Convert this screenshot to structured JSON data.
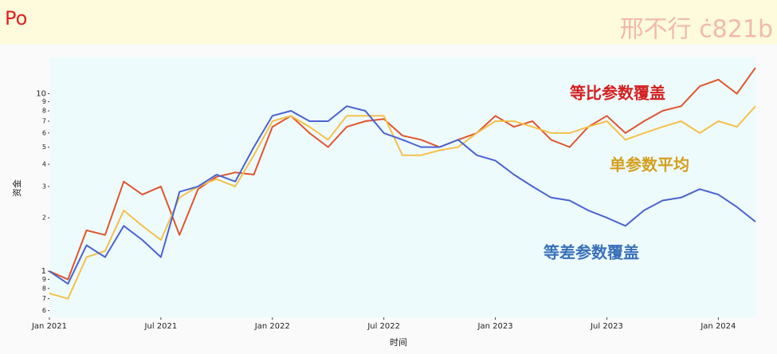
{
  "overlay": {
    "corner_label": "Po",
    "watermark": "邢不行 ċ821b"
  },
  "chart_data": {
    "type": "line",
    "ylabel": "资金",
    "xlabel": "时间",
    "log_y": true,
    "grid": false,
    "x": [
      "2021-01",
      "2021-02",
      "2021-03",
      "2021-04",
      "2021-05",
      "2021-06",
      "2021-07",
      "2021-08",
      "2021-09",
      "2021-10",
      "2021-11",
      "2021-12",
      "2022-01",
      "2022-02",
      "2022-03",
      "2022-04",
      "2022-05",
      "2022-06",
      "2022-07",
      "2022-08",
      "2022-09",
      "2022-10",
      "2022-11",
      "2022-12",
      "2023-01",
      "2023-02",
      "2023-03",
      "2023-04",
      "2023-05",
      "2023-06",
      "2023-07",
      "2023-08",
      "2023-09",
      "2023-10",
      "2023-11",
      "2023-12",
      "2024-01",
      "2024-02",
      "2024-03"
    ],
    "xlim": [
      "2021-01",
      "2024-03"
    ],
    "xticks": [
      {
        "value": "2021-01",
        "label": "Jan 2021"
      },
      {
        "value": "2021-07",
        "label": "Jul 2021"
      },
      {
        "value": "2022-01",
        "label": "Jan 2022"
      },
      {
        "value": "2022-07",
        "label": "Jul 2022"
      },
      {
        "value": "2023-01",
        "label": "Jan 2023"
      },
      {
        "value": "2023-07",
        "label": "Jul 2023"
      },
      {
        "value": "2024-01",
        "label": "Jan 2024"
      }
    ],
    "ylim": [
      0.55,
      16
    ],
    "yticks": [
      {
        "value": 0.6,
        "label": "6"
      },
      {
        "value": 0.7,
        "label": "7"
      },
      {
        "value": 0.8,
        "label": "8"
      },
      {
        "value": 0.9,
        "label": "9"
      },
      1,
      2,
      3,
      4,
      5,
      6,
      7,
      8,
      9,
      10
    ],
    "series": [
      {
        "name": "等比参数覆盖",
        "color": "#e0552f",
        "values": [
          1.0,
          0.9,
          1.7,
          1.6,
          3.2,
          2.7,
          3.0,
          1.6,
          2.9,
          3.4,
          3.6,
          3.5,
          6.5,
          7.5,
          6.0,
          5.0,
          6.5,
          7.0,
          7.2,
          5.8,
          5.5,
          5.0,
          5.5,
          6.0,
          7.5,
          6.5,
          7.0,
          5.5,
          5.0,
          6.5,
          7.5,
          6.0,
          7.0,
          8.0,
          8.5,
          11,
          12,
          10,
          14
        ]
      },
      {
        "name": "单参数平均",
        "color": "#f5c04a",
        "values": [
          0.75,
          0.7,
          1.2,
          1.3,
          2.2,
          1.8,
          1.5,
          2.6,
          3.0,
          3.3,
          3.0,
          4.5,
          7.0,
          7.5,
          6.5,
          5.5,
          7.5,
          7.5,
          7.5,
          4.5,
          4.5,
          4.8,
          5.0,
          6.0,
          7.0,
          7.0,
          6.5,
          6.0,
          6.0,
          6.5,
          7.0,
          5.5,
          6.0,
          6.5,
          7.0,
          6.0,
          7.0,
          6.5,
          8.5
        ]
      },
      {
        "name": "等差参数覆盖",
        "color": "#4a63d0",
        "values": [
          1.0,
          0.85,
          1.4,
          1.2,
          1.8,
          1.5,
          1.2,
          2.8,
          3.0,
          3.5,
          3.2,
          5.0,
          7.5,
          8.0,
          7.0,
          7.0,
          8.5,
          8.0,
          6.0,
          5.5,
          5.0,
          5.0,
          5.5,
          4.5,
          4.2,
          3.5,
          3.0,
          2.6,
          2.5,
          2.2,
          2.0,
          1.8,
          2.2,
          2.5,
          2.6,
          2.9,
          2.7,
          2.3,
          1.9
        ]
      }
    ]
  }
}
